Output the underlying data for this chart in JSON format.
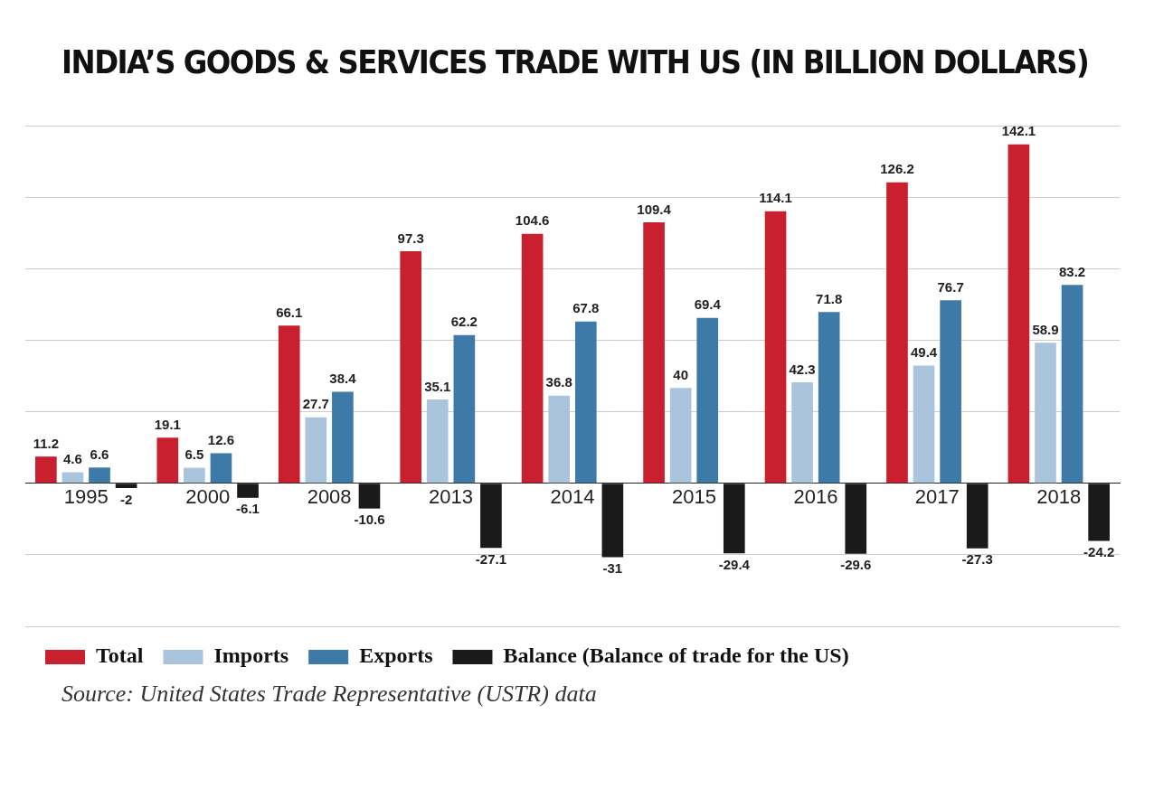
{
  "chart_data": {
    "type": "bar",
    "title": "INDIA’S GOODS & SERVICES TRADE WITH US (IN BILLION DOLLARS)",
    "categories": [
      "1995",
      "2000",
      "2008",
      "2013",
      "2014",
      "2015",
      "2016",
      "2017",
      "2018"
    ],
    "series": [
      {
        "name": "Total",
        "color": "#c8202f",
        "values": [
          11.2,
          19.1,
          66.1,
          97.3,
          104.6,
          109.4,
          114.1,
          126.2,
          142.1
        ]
      },
      {
        "name": "Imports",
        "color": "#a9c4dc",
        "values": [
          4.6,
          6.5,
          27.7,
          35.1,
          36.8,
          40,
          42.3,
          49.4,
          58.9
        ]
      },
      {
        "name": "Exports",
        "color": "#3d7aa8",
        "values": [
          6.6,
          12.6,
          38.4,
          62.2,
          67.8,
          69.4,
          71.8,
          76.7,
          83.2
        ]
      },
      {
        "name": "Balance (Balance of trade for the US)",
        "color": "#1a1a1a",
        "values": [
          -2,
          -6.1,
          -10.6,
          -27.1,
          -31,
          -29.4,
          -29.6,
          -27.3,
          -24.2
        ]
      }
    ],
    "ylim": [
      -60,
      150
    ],
    "yticks": [
      {
        "value": -60,
        "label": null
      },
      {
        "value": -30,
        "label": null
      },
      {
        "value": 0,
        "label": null
      },
      {
        "value": 30,
        "label": null
      },
      {
        "value": 60,
        "label": null
      },
      {
        "value": 90,
        "label": null
      },
      {
        "value": 120,
        "label": null
      },
      {
        "value": 150,
        "label": null
      }
    ],
    "tick_labels": "x",
    "grid": "y",
    "legend": "bottom",
    "data_labels": true,
    "annotations": [
      "Source: United States Trade Representative (USTR) data"
    ]
  }
}
